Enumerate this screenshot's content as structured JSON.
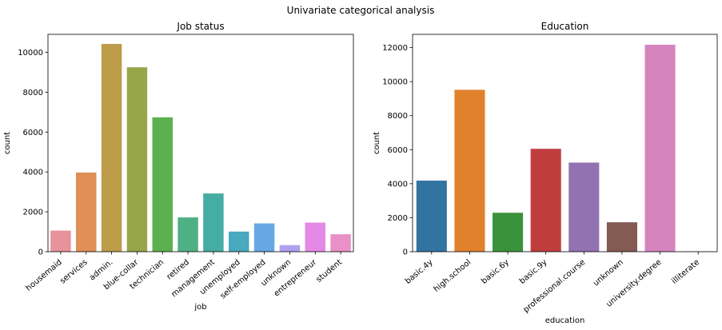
{
  "figure": {
    "suptitle": "Univariate categorical analysis"
  },
  "chart_data": [
    {
      "type": "bar",
      "title": "Job status",
      "xlabel": "job",
      "ylabel": "count",
      "categories": [
        "housemaid",
        "services",
        "admin.",
        "blue-collar",
        "technician",
        "retired",
        "management",
        "unemployed",
        "self-employed",
        "unknown",
        "entrepreneur",
        "student"
      ],
      "values": [
        1060,
        3970,
        10420,
        9250,
        6740,
        1720,
        2920,
        1010,
        1420,
        330,
        1460,
        875
      ],
      "colors": [
        "#e8929c",
        "#e08f56",
        "#bd9c4a",
        "#98a64a",
        "#5cb14f",
        "#4fb083",
        "#45ada4",
        "#48a9bf",
        "#66a8e3",
        "#b0a0f0",
        "#e48ae6",
        "#e890c7"
      ],
      "ylim": [
        0,
        10900
      ],
      "yticks": [
        0,
        2000,
        4000,
        6000,
        8000,
        10000
      ],
      "grid": false
    },
    {
      "type": "bar",
      "title": "Education",
      "xlabel": "education",
      "ylabel": "count",
      "categories": [
        "basic.4y",
        "high.school",
        "basic.6y",
        "basic.9y",
        "professional.course",
        "unknown",
        "university.degree",
        "illiterate"
      ],
      "values": [
        4180,
        9520,
        2290,
        6050,
        5240,
        1730,
        12170,
        18
      ],
      "colors": [
        "#3274a1",
        "#e1812c",
        "#3a923a",
        "#c03d3e",
        "#9372b2",
        "#845b53",
        "#d684bd",
        "#7f7f7f"
      ],
      "ylim": [
        0,
        12780
      ],
      "yticks": [
        0,
        2000,
        4000,
        6000,
        8000,
        10000,
        12000
      ],
      "grid": false
    }
  ]
}
